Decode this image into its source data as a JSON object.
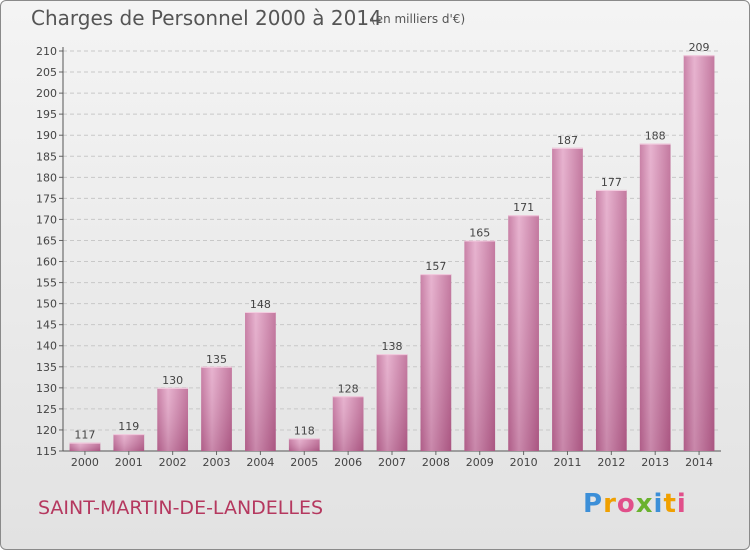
{
  "header": {
    "title": "Charges de Personnel 2000 à 2014",
    "subtitle": "(en milliers d'€)"
  },
  "footer": {
    "place": "SAINT-MARTIN-DE-LANDELLES",
    "logo_letters": [
      "P",
      "r",
      "o",
      "x",
      "i",
      "t",
      "i"
    ],
    "logo_colors": [
      "#3c8fd8",
      "#f0a000",
      "#e14f8a",
      "#6ab22e",
      "#3c8fd8",
      "#f0a000",
      "#e14f8a"
    ]
  },
  "colors": {
    "bar_fill": "#d98db4",
    "bar_label": "#444444",
    "place": "#b5385f"
  },
  "chart_data": {
    "type": "bar",
    "title": "Charges de Personnel 2000 à 2014",
    "subtitle": "(en milliers d'€)",
    "categories": [
      "2000",
      "2001",
      "2002",
      "2003",
      "2004",
      "2005",
      "2006",
      "2007",
      "2008",
      "2009",
      "2010",
      "2011",
      "2012",
      "2013",
      "2014"
    ],
    "values": [
      117,
      119,
      130,
      135,
      148,
      118,
      128,
      138,
      157,
      165,
      171,
      187,
      177,
      188,
      209
    ],
    "ylim": [
      115,
      210
    ],
    "yticks": [
      115,
      120,
      125,
      130,
      135,
      140,
      145,
      150,
      155,
      160,
      165,
      170,
      175,
      180,
      185,
      190,
      195,
      200,
      205,
      210
    ],
    "grid": true
  }
}
